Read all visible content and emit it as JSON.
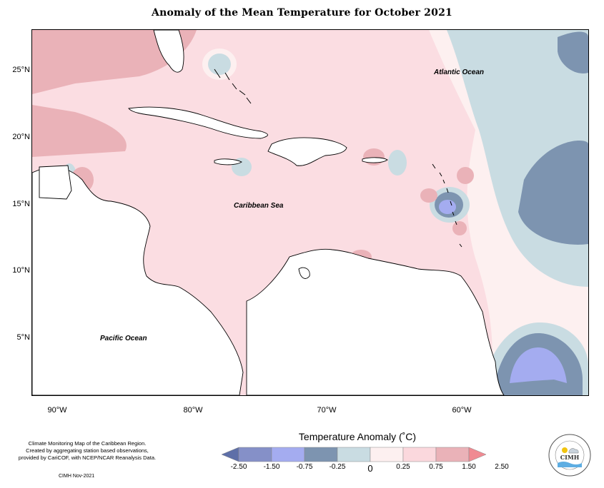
{
  "title": "Anomaly of the Mean Temperature for October 2021",
  "map": {
    "lat_labels": [
      "25°N",
      "20°N",
      "15°N",
      "10°N",
      "5°N"
    ],
    "lon_labels": [
      "90°W",
      "80°W",
      "70°W",
      "60°W"
    ],
    "labels": {
      "atlantic": "Atlantic Ocean",
      "caribbean": "Caribbean Sea",
      "pacific": "Pacific Ocean"
    }
  },
  "legend": {
    "title": "Temperature Anomaly (˚C)",
    "ticks": [
      "-2.50",
      "-1.50",
      "-0.75",
      "-0.25",
      "0",
      "0.25",
      "0.75",
      "1.50",
      "2.50"
    ],
    "colors": [
      "#5e6fa8",
      "#8590c8",
      "#a4acf0",
      "#7d94b0",
      "#c9dce2",
      "#fdf0f0",
      "#fbd8dd",
      "#eab2b8",
      "#f08a92"
    ]
  },
  "footer": {
    "note_line1": "Climate Monitoring Map of the Caribbean Region.",
    "note_line2": "Created by aggregating station based observations,",
    "note_line3": "provided by CariCOF, with NCEP/NCAR Reanalysis Data.",
    "credit": "CIMH Nov-2021",
    "logo_text": "CIMH"
  }
}
